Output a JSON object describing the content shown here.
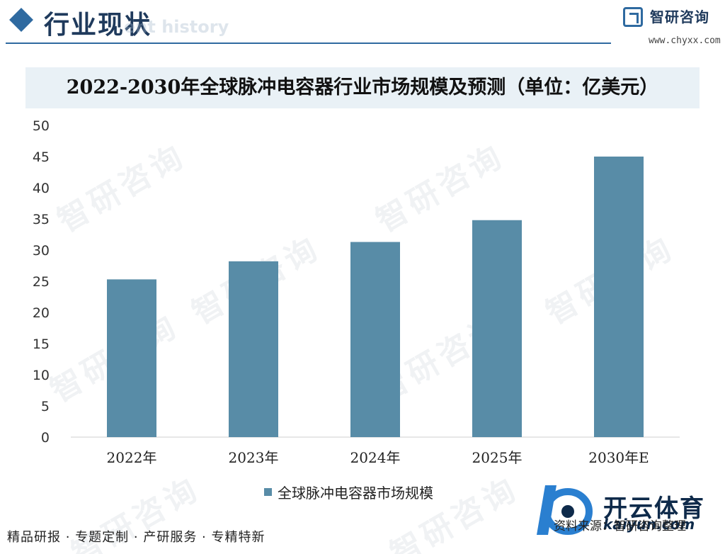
{
  "header": {
    "title": "行业现状",
    "ghost_text": "ent history",
    "logo_name": "智研咨询",
    "logo_url": "www.chyxx.com"
  },
  "watermark_text": "智研咨询",
  "chart_data": {
    "type": "bar",
    "title": "2022-2030年全球脉冲电容器行业市场规模及预测（单位：亿美元）",
    "categories": [
      "2022年",
      "2023年",
      "2024年",
      "2025年",
      "2030年E"
    ],
    "series": [
      {
        "name": "全球脉冲电容器市场规模",
        "values": [
          25.3,
          28.2,
          31.3,
          34.8,
          45.0
        ]
      }
    ],
    "ylim": [
      0,
      50
    ],
    "yticks": [
      0,
      5,
      10,
      15,
      20,
      25,
      30,
      35,
      40,
      45,
      50
    ],
    "xlabel": "",
    "ylabel": "",
    "grid": false,
    "legend_position": "bottom",
    "bar_color": "#588ca7"
  },
  "footer": {
    "tagline": "精品研报 · 专题定制 · 产研服务 · 专精特新",
    "source": "资料来源：智研咨询整理",
    "brand": "开云体育",
    "brand_sub": "kaiyun.com"
  }
}
